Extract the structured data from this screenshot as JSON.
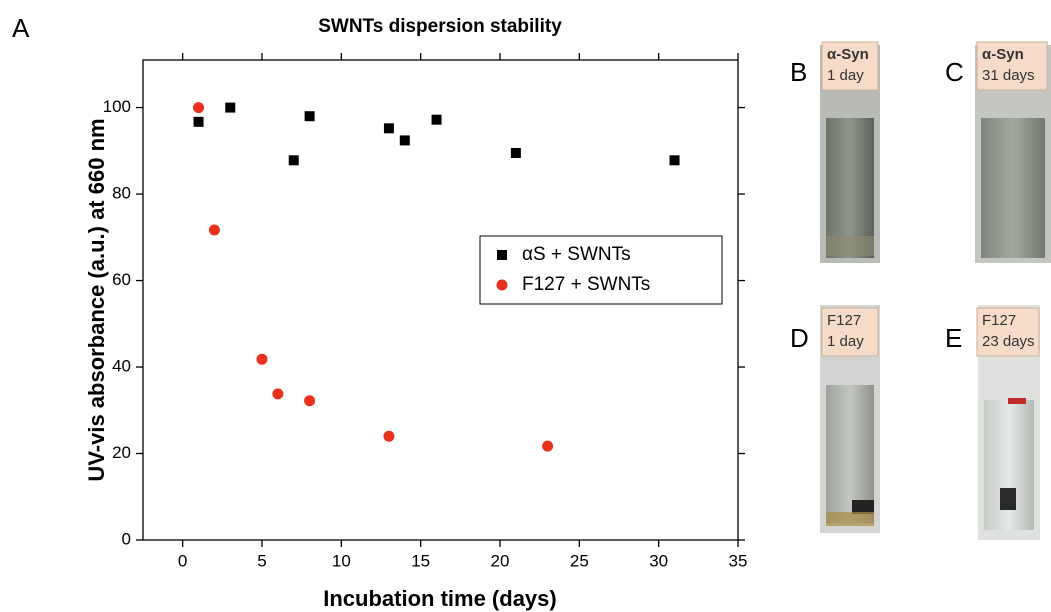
{
  "chart_data": {
    "type": "scatter",
    "panel_label": "A",
    "title": "SWNTs dispersion stability",
    "x_label": "Incubation time (days)",
    "y_label": "UV-vis absorbance (a.u.) at 660 nm",
    "xlim": [
      -2.5,
      35
    ],
    "xticks": [
      0,
      5,
      10,
      15,
      20,
      25,
      30,
      35
    ],
    "ylim": [
      0,
      111
    ],
    "yticks": [
      0,
      20,
      40,
      60,
      80,
      100
    ],
    "legend": "right",
    "series": [
      {
        "name": "αS + SWNTs",
        "color": "#000000",
        "marker": "square",
        "x": [
          1,
          3,
          7,
          8,
          13,
          14,
          16,
          21,
          31
        ],
        "values": [
          96.7,
          100,
          87.8,
          98,
          95.2,
          92.4,
          97.2,
          89.5,
          87.8
        ]
      },
      {
        "name": "F127 + SWNTs",
        "color": "#e8321e",
        "marker": "circle",
        "x": [
          1,
          2,
          5,
          6,
          8,
          13,
          23
        ],
        "values": [
          100,
          71.7,
          41.8,
          33.8,
          32.2,
          24,
          21.7
        ]
      }
    ]
  },
  "panels": [
    {
      "letter": "B",
      "lines": [
        "α-Syn",
        "1 day"
      ]
    },
    {
      "letter": "C",
      "lines": [
        "α-Syn",
        "31 days"
      ]
    },
    {
      "letter": "D",
      "lines": [
        "F127",
        "1 day"
      ]
    },
    {
      "letter": "E",
      "lines": [
        "F127",
        "23 days"
      ]
    }
  ]
}
